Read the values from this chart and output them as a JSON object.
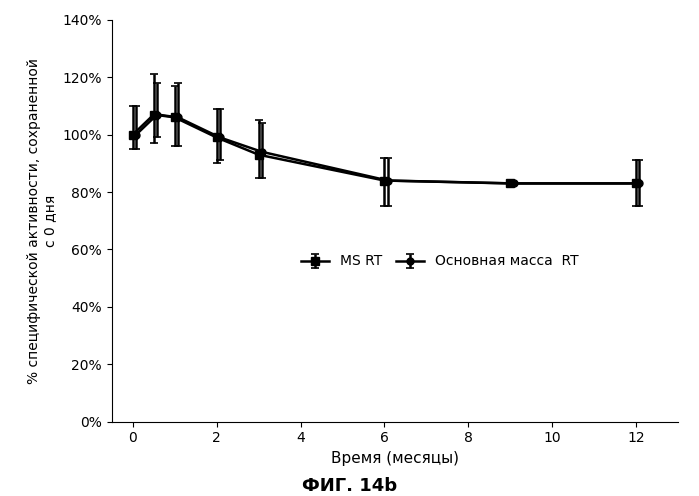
{
  "ms_rt_x": [
    0,
    0.5,
    1,
    2,
    3,
    6,
    9,
    12
  ],
  "ms_rt_y": [
    100,
    107,
    106,
    99,
    93,
    84,
    83,
    83
  ],
  "ms_rt_yerr_upper": [
    10,
    14,
    11,
    10,
    12,
    8,
    0,
    8
  ],
  "ms_rt_yerr_lower": [
    5,
    10,
    10,
    9,
    8,
    9,
    0,
    8
  ],
  "bulk_rt_x": [
    0,
    0.5,
    1,
    2,
    3,
    6,
    9,
    12
  ],
  "bulk_rt_y": [
    100,
    107,
    106,
    99,
    94,
    84,
    83,
    83
  ],
  "bulk_rt_yerr_upper": [
    10,
    11,
    12,
    10,
    10,
    8,
    0,
    8
  ],
  "bulk_rt_yerr_lower": [
    5,
    8,
    10,
    8,
    9,
    9,
    0,
    8
  ],
  "xlabel": "Время (месяцы)",
  "ylabel": "% специфической активности, сохраненной\nс 0 дня",
  "label_ms": "MS RT",
  "label_bulk": "Основная масса  RT",
  "fig_label": "ФИГ. 14b",
  "ylim_pct": [
    0,
    140
  ],
  "xlim": [
    -0.5,
    13
  ],
  "yticks_pct": [
    0,
    20,
    40,
    60,
    80,
    100,
    120,
    140
  ],
  "xticks": [
    0,
    2,
    4,
    6,
    8,
    10,
    12
  ],
  "line_color": "#000000",
  "bg_color": "#ffffff",
  "capsize": 3,
  "linewidth": 1.8,
  "markersize_sq": 6,
  "markersize_dia": 5
}
